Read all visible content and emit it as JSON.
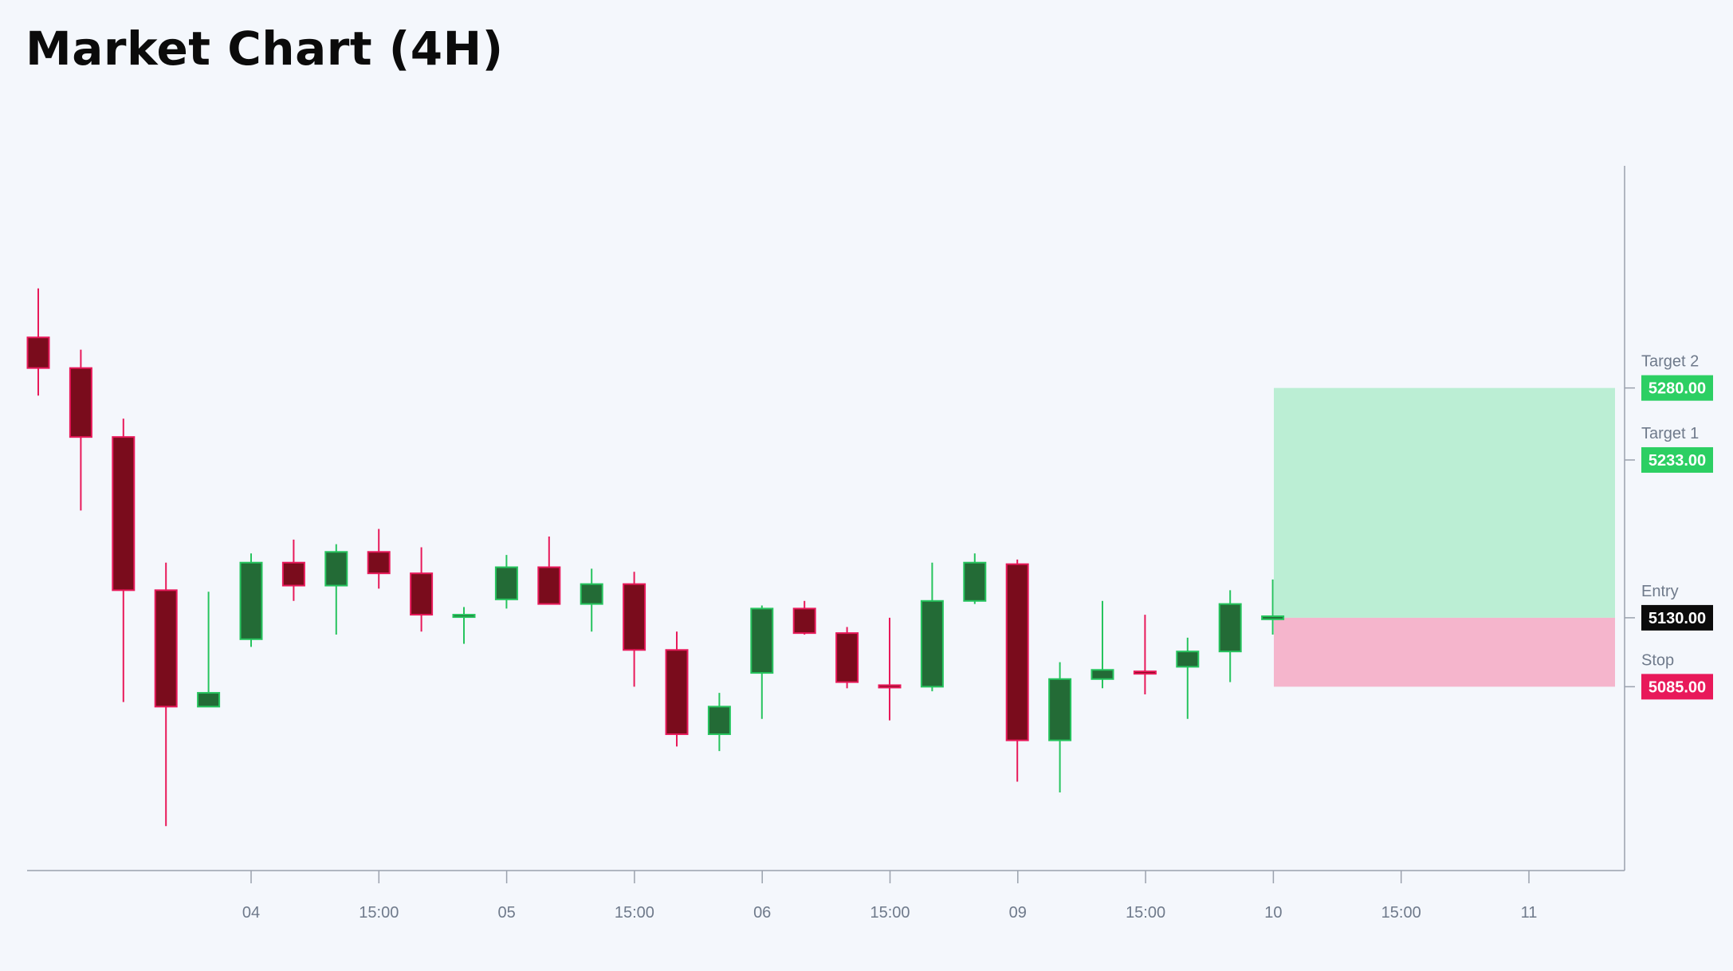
{
  "header": {
    "title": "Market Chart (4H)"
  },
  "colors": {
    "background": "#f4f7fc",
    "bull_body": "#236b36",
    "bull_border": "#26c45e",
    "bear_body": "#7a0c1c",
    "bear_border": "#e8195a",
    "axis": "#9aa1ad",
    "target_zone": "#bbeed4",
    "stop_zone": "#f5b5cc",
    "target_tag": "#2ccf63",
    "entry_tag": "#0b0b0b",
    "stop_tag": "#e8195a"
  },
  "chart_data": {
    "type": "candlestick",
    "timeframe": "4H",
    "x_tick_labels": [
      "04",
      "15:00",
      "05",
      "15:00",
      "06",
      "15:00",
      "09",
      "15:00",
      "10",
      "15:00",
      "11"
    ],
    "ylim": [
      4965,
      5425
    ],
    "grid": false,
    "candles": [
      {
        "o": 5313,
        "h": 5345,
        "l": 5275,
        "c": 5293
      },
      {
        "o": 5293,
        "h": 5305,
        "l": 5200,
        "c": 5248
      },
      {
        "o": 5248,
        "h": 5260,
        "l": 5075,
        "c": 5148
      },
      {
        "o": 5148,
        "h": 5166,
        "l": 4994,
        "c": 5072
      },
      {
        "o": 5072,
        "h": 5147,
        "l": 5072,
        "c": 5081
      },
      {
        "o": 5116,
        "h": 5172,
        "l": 5111,
        "c": 5166
      },
      {
        "o": 5166,
        "h": 5181,
        "l": 5141,
        "c": 5151
      },
      {
        "o": 5151,
        "h": 5178,
        "l": 5119,
        "c": 5173
      },
      {
        "o": 5173,
        "h": 5188,
        "l": 5149,
        "c": 5159
      },
      {
        "o": 5159,
        "h": 5176,
        "l": 5121,
        "c": 5132
      },
      {
        "o": 5131,
        "h": 5137,
        "l": 5113,
        "c": 5132
      },
      {
        "o": 5142,
        "h": 5171,
        "l": 5136,
        "c": 5163
      },
      {
        "o": 5163,
        "h": 5183,
        "l": 5141,
        "c": 5139
      },
      {
        "o": 5139,
        "h": 5162,
        "l": 5121,
        "c": 5152
      },
      {
        "o": 5152,
        "h": 5160,
        "l": 5085,
        "c": 5109
      },
      {
        "o": 5109,
        "h": 5121,
        "l": 5046,
        "c": 5054
      },
      {
        "o": 5054,
        "h": 5081,
        "l": 5043,
        "c": 5072
      },
      {
        "o": 5094,
        "h": 5138,
        "l": 5064,
        "c": 5136
      },
      {
        "o": 5136,
        "h": 5141,
        "l": 5119,
        "c": 5120
      },
      {
        "o": 5120,
        "h": 5124,
        "l": 5084,
        "c": 5088
      },
      {
        "o": 5086,
        "h": 5130,
        "l": 5063,
        "c": 5085
      },
      {
        "o": 5085,
        "h": 5166,
        "l": 5082,
        "c": 5141
      },
      {
        "o": 5141,
        "h": 5172,
        "l": 5139,
        "c": 5166
      },
      {
        "o": 5165,
        "h": 5168,
        "l": 5023,
        "c": 5050
      },
      {
        "o": 5050,
        "h": 5101,
        "l": 5016,
        "c": 5090
      },
      {
        "o": 5090,
        "h": 5141,
        "l": 5084,
        "c": 5096
      },
      {
        "o": 5095,
        "h": 5132,
        "l": 5080,
        "c": 5094
      },
      {
        "o": 5098,
        "h": 5117,
        "l": 5064,
        "c": 5108
      },
      {
        "o": 5108,
        "h": 5148,
        "l": 5088,
        "c": 5139
      },
      {
        "o": 5129,
        "h": 5155,
        "l": 5119,
        "c": 5131
      }
    ],
    "trade_levels": {
      "target_2": {
        "label": "Target 2",
        "value": "5280.00"
      },
      "target_1": {
        "label": "Target 1",
        "value": "5233.00"
      },
      "entry": {
        "label": "Entry",
        "value": "5130.00"
      },
      "stop": {
        "label": "Stop",
        "value": "5085.00"
      }
    }
  }
}
